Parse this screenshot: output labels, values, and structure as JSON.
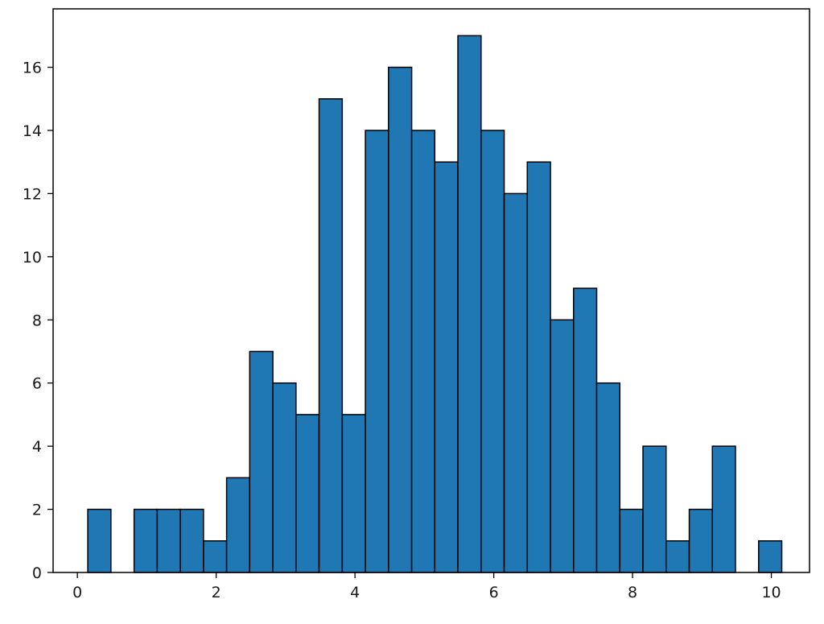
{
  "chart_data": {
    "type": "bar",
    "subtype": "histogram",
    "title": "",
    "xlabel": "",
    "ylabel": "",
    "bin_edges": [
      0.15,
      0.483,
      0.817,
      1.15,
      1.483,
      1.817,
      2.15,
      2.483,
      2.817,
      3.15,
      3.483,
      3.817,
      4.15,
      4.483,
      4.817,
      5.15,
      5.483,
      5.817,
      6.15,
      6.483,
      6.817,
      7.15,
      7.483,
      7.817,
      8.15,
      8.483,
      8.817,
      9.15,
      9.483,
      9.817,
      10.15
    ],
    "values": [
      2,
      0,
      2,
      2,
      2,
      1,
      3,
      7,
      6,
      5,
      15,
      5,
      14,
      16,
      14,
      13,
      17,
      14,
      12,
      13,
      8,
      9,
      6,
      2,
      4,
      1,
      2,
      4,
      0,
      1
    ],
    "xlim": [
      -0.35,
      10.55
    ],
    "ylim": [
      0,
      17.85
    ],
    "xticks": [
      0,
      2,
      4,
      6,
      8,
      10
    ],
    "xtick_labels": [
      "0",
      "2",
      "4",
      "6",
      "8",
      "10"
    ],
    "yticks": [
      0,
      2,
      4,
      6,
      8,
      10,
      12,
      14,
      16
    ],
    "ytick_labels": [
      "0",
      "2",
      "4",
      "6",
      "8",
      "10",
      "12",
      "14",
      "16"
    ],
    "bar_color": "#1f77b4",
    "edge_color": "#000000",
    "grid": false,
    "legend": "none"
  }
}
